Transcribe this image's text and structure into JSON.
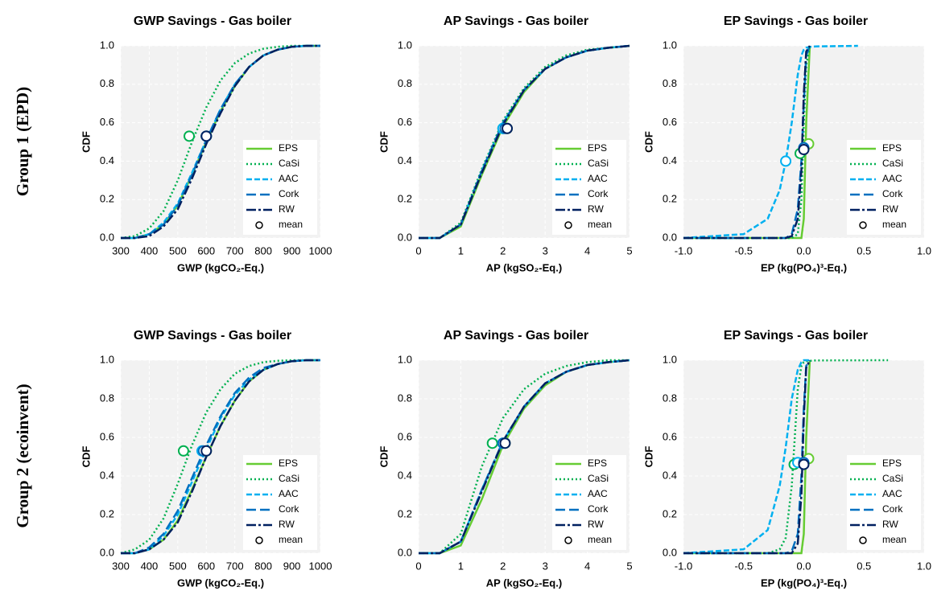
{
  "row_labels": [
    "Group 1 (EPD)",
    "Group 2 (ecoinvent)"
  ],
  "chart_data": [
    {
      "type": "line",
      "title": "GWP Savings - Gas boiler",
      "x_label": "GWP (kgCO₂-Eq.)",
      "y_label": "CDF",
      "xlim": [
        300,
        1000
      ],
      "xticks": [
        300,
        400,
        500,
        600,
        700,
        800,
        900,
        1000
      ],
      "ylim": [
        0,
        1
      ],
      "yticks": [
        {
          "value": 0,
          "label": "0.0"
        },
        0.2,
        0.4,
        0.6,
        0.8,
        {
          "value": 1,
          "label": "1.0"
        }
      ],
      "grid": true,
      "legend": "lower right",
      "x": [
        300,
        350,
        400,
        450,
        500,
        550,
        600,
        650,
        700,
        750,
        800,
        850,
        900,
        950,
        1000
      ],
      "series": [
        {
          "name": "EPS",
          "color": "#66cc33",
          "dash": "solid",
          "values": [
            0,
            0,
            0.02,
            0.07,
            0.17,
            0.33,
            0.5,
            0.66,
            0.79,
            0.89,
            0.95,
            0.98,
            0.995,
            1,
            1
          ]
        },
        {
          "name": "CaSi",
          "color": "#00b050",
          "dash": "dotted",
          "values": [
            0,
            0.01,
            0.05,
            0.14,
            0.3,
            0.5,
            0.68,
            0.82,
            0.91,
            0.96,
            0.985,
            0.995,
            1,
            1,
            1
          ]
        },
        {
          "name": "AAC",
          "color": "#00b0f0",
          "dash": "dashed",
          "values": [
            0,
            0,
            0.02,
            0.08,
            0.18,
            0.34,
            0.51,
            0.67,
            0.8,
            0.89,
            0.95,
            0.98,
            0.995,
            1,
            1
          ]
        },
        {
          "name": "Cork",
          "color": "#0070c0",
          "dash": "longdash",
          "values": [
            0,
            0,
            0.02,
            0.07,
            0.17,
            0.33,
            0.51,
            0.67,
            0.8,
            0.89,
            0.95,
            0.98,
            0.995,
            1,
            1
          ]
        },
        {
          "name": "RW",
          "color": "#002060",
          "dash": "dashdot",
          "values": [
            0,
            0,
            0.01,
            0.06,
            0.15,
            0.31,
            0.49,
            0.65,
            0.79,
            0.89,
            0.95,
            0.98,
            0.995,
            1,
            1
          ]
        },
        {
          "name": "mean",
          "type": "scatter",
          "color": "#000000",
          "x": [
            600,
            540,
            600,
            600,
            600
          ],
          "values": [
            0.53,
            0.53,
            0.53,
            0.53,
            0.53
          ],
          "colors": [
            "#66cc33",
            "#00b050",
            "#00b0f0",
            "#0070c0",
            "#002060"
          ]
        }
      ]
    },
    {
      "type": "line",
      "title": "AP Savings - Gas boiler",
      "x_label": "AP (kgSO₂-Eq.)",
      "y_label": "CDF",
      "xlim": [
        0,
        5
      ],
      "xticks": [
        0,
        1,
        2,
        3,
        4,
        5
      ],
      "ylim": [
        0,
        1
      ],
      "yticks": [
        {
          "value": 0,
          "label": "0.0"
        },
        0.2,
        0.4,
        0.6,
        0.8,
        {
          "value": 1,
          "label": "1.0"
        }
      ],
      "grid": true,
      "legend": "lower right",
      "x": [
        0,
        0.5,
        1,
        1.5,
        2,
        2.5,
        3,
        3.5,
        4,
        4.5,
        5
      ],
      "series": [
        {
          "name": "EPS",
          "color": "#66cc33",
          "dash": "solid",
          "values": [
            0,
            0,
            0.06,
            0.33,
            0.58,
            0.76,
            0.88,
            0.94,
            0.975,
            0.99,
            1
          ]
        },
        {
          "name": "CaSi",
          "color": "#00b050",
          "dash": "dotted",
          "values": [
            0,
            0,
            0.08,
            0.36,
            0.61,
            0.78,
            0.89,
            0.95,
            0.98,
            0.99,
            1
          ]
        },
        {
          "name": "AAC",
          "color": "#00b0f0",
          "dash": "dashed",
          "values": [
            0,
            0,
            0.07,
            0.35,
            0.6,
            0.77,
            0.88,
            0.94,
            0.975,
            0.99,
            1
          ]
        },
        {
          "name": "Cork",
          "color": "#0070c0",
          "dash": "longdash",
          "values": [
            0,
            0,
            0.07,
            0.35,
            0.6,
            0.77,
            0.88,
            0.94,
            0.975,
            0.99,
            1
          ]
        },
        {
          "name": "RW",
          "color": "#002060",
          "dash": "dashdot",
          "values": [
            0,
            0,
            0.07,
            0.34,
            0.59,
            0.77,
            0.88,
            0.94,
            0.975,
            0.99,
            1
          ]
        },
        {
          "name": "mean",
          "type": "scatter",
          "color": "#000000",
          "x": [
            2.1,
            2.0,
            2.0,
            2.05,
            2.1
          ],
          "values": [
            0.57,
            0.57,
            0.57,
            0.57,
            0.57
          ],
          "colors": [
            "#66cc33",
            "#00b050",
            "#00b0f0",
            "#0070c0",
            "#002060"
          ]
        }
      ]
    },
    {
      "type": "line",
      "title": "EP Savings - Gas boiler",
      "x_label": "EP (kg(PO₄)³-Eq.)",
      "y_label": "CDF",
      "xlim": [
        -1,
        1
      ],
      "xticks": [
        {
          "value": -1,
          "label": "-1.0"
        },
        -0.5,
        {
          "value": 0,
          "label": "0.0"
        },
        0.5,
        {
          "value": 1,
          "label": "1.0"
        }
      ],
      "ylim": [
        0,
        1
      ],
      "yticks": [
        {
          "value": 0,
          "label": "0.0"
        },
        0.2,
        0.4,
        0.6,
        0.8,
        {
          "value": 1,
          "label": "1.0"
        }
      ],
      "grid": true,
      "legend": "lower right",
      "x": [
        -1,
        -0.5,
        -0.3,
        -0.2,
        -0.15,
        -0.1,
        -0.05,
        -0.02,
        0,
        0.02,
        0.05,
        0.1,
        0.45,
        1
      ],
      "series": [
        {
          "name": "EPS",
          "color": "#66cc33",
          "dash": "solid",
          "values": [
            0,
            0,
            0,
            0,
            0,
            0,
            0,
            0,
            0.1,
            0.6,
            1,
            null,
            null,
            null
          ]
        },
        {
          "name": "CaSi",
          "color": "#00b050",
          "dash": "dotted",
          "values": [
            0,
            0,
            0,
            0,
            0,
            0,
            0.02,
            0.2,
            0.6,
            0.9,
            1,
            null,
            null,
            null
          ]
        },
        {
          "name": "AAC",
          "color": "#00b0f0",
          "dash": "dashed",
          "values": [
            0,
            0.02,
            0.1,
            0.25,
            0.4,
            0.6,
            0.85,
            0.95,
            0.98,
            0.99,
            0.995,
            0.997,
            1,
            null
          ]
        },
        {
          "name": "Cork",
          "color": "#0070c0",
          "dash": "longdash",
          "values": [
            0,
            0,
            0,
            0,
            0,
            0.02,
            0.15,
            0.4,
            0.7,
            0.95,
            1,
            null,
            null,
            null
          ]
        },
        {
          "name": "RW",
          "color": "#002060",
          "dash": "dashdot",
          "values": [
            0,
            0,
            0,
            0,
            0,
            0.01,
            0.1,
            0.35,
            0.75,
            0.97,
            1,
            null,
            null,
            null
          ]
        },
        {
          "name": "mean",
          "type": "scatter",
          "color": "#000000",
          "x": [
            0.04,
            -0.03,
            -0.15,
            0,
            0
          ],
          "values": [
            0.49,
            0.44,
            0.4,
            0.47,
            0.46
          ],
          "colors": [
            "#66cc33",
            "#00b050",
            "#00b0f0",
            "#0070c0",
            "#002060"
          ]
        }
      ]
    },
    {
      "type": "line",
      "title": "GWP Savings - Gas boiler",
      "x_label": "GWP (kgCO₂-Eq.)",
      "y_label": "CDF",
      "xlim": [
        300,
        1000
      ],
      "xticks": [
        300,
        400,
        500,
        600,
        700,
        800,
        900,
        1000
      ],
      "ylim": [
        0,
        1
      ],
      "yticks": [
        {
          "value": 0,
          "label": "0.0"
        },
        0.2,
        0.4,
        0.6,
        0.8,
        {
          "value": 1,
          "label": "1.0"
        }
      ],
      "grid": true,
      "legend": "lower right",
      "x": [
        300,
        350,
        400,
        450,
        500,
        550,
        600,
        650,
        700,
        750,
        800,
        850,
        900,
        950,
        1000
      ],
      "series": [
        {
          "name": "EPS",
          "color": "#66cc33",
          "dash": "solid",
          "values": [
            0,
            0,
            0.02,
            0.07,
            0.17,
            0.33,
            0.5,
            0.66,
            0.79,
            0.89,
            0.95,
            0.98,
            0.995,
            1,
            1
          ]
        },
        {
          "name": "CaSi",
          "color": "#00b050",
          "dash": "dotted",
          "values": [
            0,
            0.02,
            0.07,
            0.18,
            0.36,
            0.56,
            0.73,
            0.85,
            0.93,
            0.97,
            0.99,
            0.997,
            1,
            1,
            1
          ]
        },
        {
          "name": "AAC",
          "color": "#00b0f0",
          "dash": "dashed",
          "values": [
            0,
            0,
            0.02,
            0.09,
            0.2,
            0.37,
            0.54,
            0.7,
            0.82,
            0.9,
            0.95,
            0.98,
            0.995,
            1,
            1
          ]
        },
        {
          "name": "Cork",
          "color": "#0070c0",
          "dash": "longdash",
          "values": [
            0,
            0,
            0.03,
            0.1,
            0.22,
            0.39,
            0.56,
            0.71,
            0.83,
            0.91,
            0.96,
            0.98,
            0.995,
            1,
            1
          ]
        },
        {
          "name": "RW",
          "color": "#002060",
          "dash": "dashdot",
          "values": [
            0,
            0,
            0.02,
            0.07,
            0.16,
            0.32,
            0.5,
            0.66,
            0.79,
            0.89,
            0.95,
            0.98,
            0.995,
            1,
            1
          ]
        },
        {
          "name": "mean",
          "type": "scatter",
          "color": "#000000",
          "x": [
            600,
            520,
            585,
            590,
            600
          ],
          "values": [
            0.53,
            0.53,
            0.53,
            0.53,
            0.53
          ],
          "colors": [
            "#66cc33",
            "#00b050",
            "#00b0f0",
            "#0070c0",
            "#002060"
          ]
        }
      ]
    },
    {
      "type": "line",
      "title": "AP Savings - Gas boiler",
      "x_label": "AP (kgSO₂-Eq.)",
      "y_label": "CDF",
      "xlim": [
        0,
        5
      ],
      "xticks": [
        0,
        1,
        2,
        3,
        4,
        5
      ],
      "ylim": [
        0,
        1
      ],
      "yticks": [
        {
          "value": 0,
          "label": "0.0"
        },
        0.2,
        0.4,
        0.6,
        0.8,
        {
          "value": 1,
          "label": "1.0"
        }
      ],
      "grid": true,
      "legend": "lower right",
      "x": [
        0,
        0.5,
        1,
        1.5,
        2,
        2.5,
        3,
        3.5,
        4,
        4.5,
        5
      ],
      "series": [
        {
          "name": "EPS",
          "color": "#66cc33",
          "dash": "solid",
          "values": [
            0,
            0,
            0.04,
            0.28,
            0.56,
            0.75,
            0.87,
            0.94,
            0.975,
            0.99,
            1
          ]
        },
        {
          "name": "CaSi",
          "color": "#00b050",
          "dash": "dotted",
          "values": [
            0,
            0,
            0.1,
            0.45,
            0.7,
            0.85,
            0.93,
            0.97,
            0.99,
            1,
            1
          ]
        },
        {
          "name": "AAC",
          "color": "#00b0f0",
          "dash": "dashed",
          "values": [
            0,
            0,
            0.06,
            0.33,
            0.58,
            0.76,
            0.88,
            0.94,
            0.975,
            0.99,
            1
          ]
        },
        {
          "name": "Cork",
          "color": "#0070c0",
          "dash": "longdash",
          "values": [
            0,
            0,
            0.06,
            0.33,
            0.58,
            0.76,
            0.88,
            0.94,
            0.975,
            0.99,
            1
          ]
        },
        {
          "name": "RW",
          "color": "#002060",
          "dash": "dashdot",
          "values": [
            0,
            0,
            0.06,
            0.32,
            0.58,
            0.76,
            0.88,
            0.94,
            0.975,
            0.99,
            1
          ]
        },
        {
          "name": "mean",
          "type": "scatter",
          "color": "#000000",
          "x": [
            2.05,
            1.75,
            2.0,
            2.0,
            2.05
          ],
          "values": [
            0.57,
            0.57,
            0.57,
            0.57,
            0.57
          ],
          "colors": [
            "#66cc33",
            "#00b050",
            "#00b0f0",
            "#0070c0",
            "#002060"
          ]
        }
      ]
    },
    {
      "type": "line",
      "title": "EP Savings - Gas boiler",
      "x_label": "EP (kg(PO₄)³-Eq.)",
      "y_label": "CDF",
      "xlim": [
        -1,
        1
      ],
      "xticks": [
        {
          "value": -1,
          "label": "-1.0"
        },
        -0.5,
        {
          "value": 0,
          "label": "0.0"
        },
        0.5,
        {
          "value": 1,
          "label": "1.0"
        }
      ],
      "ylim": [
        0,
        1
      ],
      "yticks": [
        {
          "value": 0,
          "label": "0.0"
        },
        0.2,
        0.4,
        0.6,
        0.8,
        {
          "value": 1,
          "label": "1.0"
        }
      ],
      "grid": true,
      "legend": "lower right",
      "x": [
        -1,
        -0.5,
        -0.3,
        -0.2,
        -0.15,
        -0.1,
        -0.05,
        -0.02,
        0,
        0.02,
        0.05,
        0.1,
        0.7,
        1
      ],
      "series": [
        {
          "name": "EPS",
          "color": "#66cc33",
          "dash": "solid",
          "values": [
            0,
            0,
            0,
            0,
            0,
            0,
            0,
            0,
            0.1,
            0.6,
            1,
            null,
            null,
            null
          ]
        },
        {
          "name": "CaSi",
          "color": "#00b050",
          "dash": "dotted",
          "values": [
            0,
            0,
            0,
            0.02,
            0.08,
            0.35,
            0.85,
            0.97,
            0.99,
            0.995,
            0.997,
            0.999,
            1,
            null
          ]
        },
        {
          "name": "AAC",
          "color": "#00b0f0",
          "dash": "dashed",
          "values": [
            0,
            0.02,
            0.12,
            0.35,
            0.55,
            0.8,
            0.95,
            0.99,
            1,
            1,
            1,
            null,
            null,
            null
          ]
        },
        {
          "name": "Cork",
          "color": "#0070c0",
          "dash": "longdash",
          "values": [
            0,
            0,
            0,
            0,
            0,
            0.01,
            0.1,
            0.4,
            0.75,
            0.97,
            1,
            null,
            null,
            null
          ]
        },
        {
          "name": "RW",
          "color": "#002060",
          "dash": "dashdot",
          "values": [
            0,
            0,
            0,
            0,
            0,
            0,
            0.05,
            0.3,
            0.7,
            0.96,
            1,
            null,
            null,
            null
          ]
        },
        {
          "name": "mean",
          "type": "scatter",
          "color": "#000000",
          "x": [
            0.04,
            -0.08,
            -0.05,
            0,
            0
          ],
          "values": [
            0.49,
            0.46,
            0.47,
            0.47,
            0.46
          ],
          "colors": [
            "#66cc33",
            "#00b050",
            "#00b0f0",
            "#0070c0",
            "#002060"
          ]
        }
      ]
    }
  ]
}
